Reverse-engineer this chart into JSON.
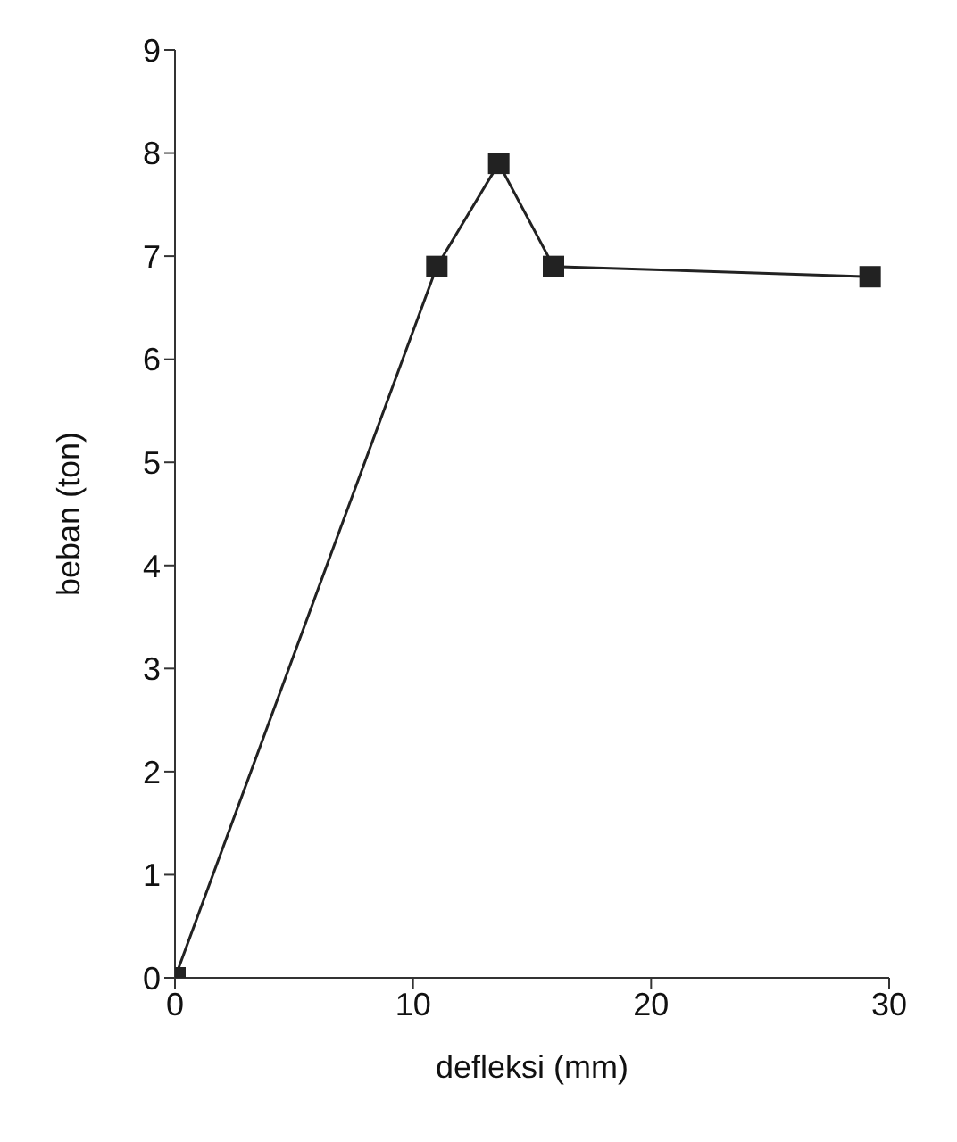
{
  "chart_data": {
    "type": "line",
    "xlabel": "defleksi (mm)",
    "ylabel": "beban (ton)",
    "series": [
      {
        "color": "#222222",
        "x": [
          0,
          11,
          13.6,
          15.9,
          29.2
        ],
        "values": [
          0,
          6.9,
          7.9,
          6.9,
          6.8
        ]
      }
    ],
    "xlim": [
      0,
      30
    ],
    "xticks": [
      0,
      10,
      20,
      30
    ],
    "ylim": [
      0,
      9
    ],
    "yticks": [
      0,
      1,
      2,
      3,
      4,
      5,
      6,
      7,
      8,
      9
    ],
    "grid": false,
    "legend": false,
    "marker": "square",
    "line_style": "solid"
  }
}
